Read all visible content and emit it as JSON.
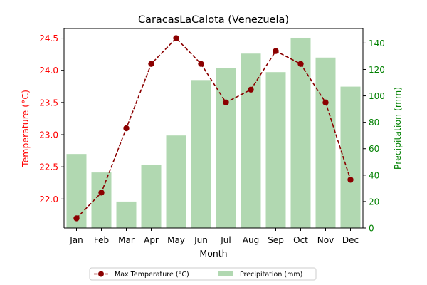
{
  "chart_data": {
    "type": "bar+line",
    "title": "CaracasLaCalota (Venezuela)",
    "xlabel": "Month",
    "categories": [
      "Jan",
      "Feb",
      "Mar",
      "Apr",
      "May",
      "Jun",
      "Jul",
      "Aug",
      "Sep",
      "Oct",
      "Nov",
      "Dec"
    ],
    "series": [
      {
        "name": "Max Temperature (°C)",
        "type": "line",
        "axis": "left",
        "values": [
          21.7,
          22.1,
          23.1,
          24.1,
          24.5,
          24.1,
          23.5,
          23.7,
          24.3,
          24.1,
          23.5,
          22.3
        ],
        "color": "#8b0000",
        "line_style": "dashed",
        "marker": "circle"
      },
      {
        "name": "Precipitation (mm)",
        "type": "bar",
        "axis": "right",
        "values": [
          56,
          42,
          20,
          48,
          70,
          112,
          121,
          132,
          118,
          144,
          129,
          107
        ],
        "color": "#b1d8b1"
      }
    ],
    "y_left": {
      "label": "Temperature (°C)",
      "color": "#ff0000",
      "ticks": [
        "22.0",
        "22.5",
        "23.0",
        "23.5",
        "24.0",
        "24.5"
      ],
      "range": [
        21.55,
        24.65
      ]
    },
    "y_right": {
      "label": "Precipitation (mm)",
      "color": "#008000",
      "ticks": [
        "0",
        "20",
        "40",
        "60",
        "80",
        "100",
        "120",
        "140"
      ],
      "range": [
        0,
        151
      ]
    },
    "legend": {
      "placement": "bottom-center",
      "entries": [
        "Max Temperature (°C)",
        "Precipitation (mm)"
      ]
    },
    "grid": false
  }
}
